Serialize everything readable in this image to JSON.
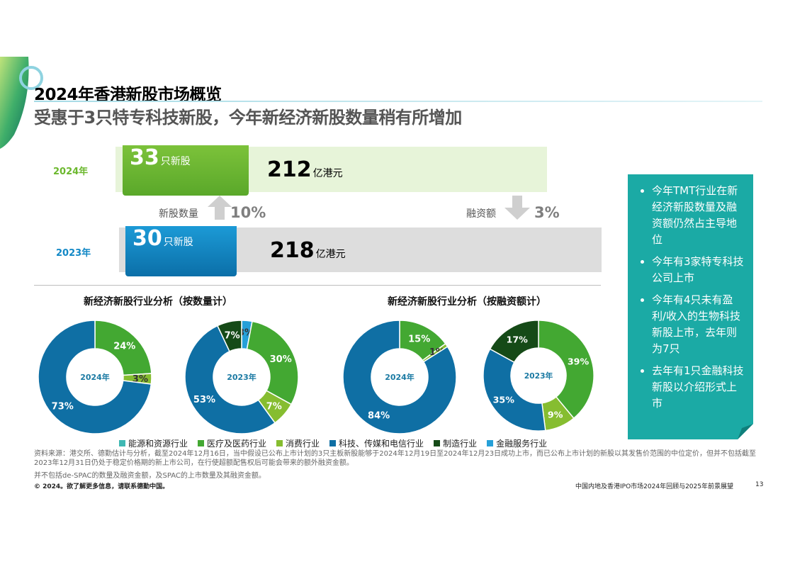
{
  "header": {
    "title": "2024年香港新股市场概览",
    "subtitle": "受惠于3只特专科技新股，今年新经济新股数量稍有所增加"
  },
  "summary": {
    "y2024": {
      "year": "2024年",
      "count": "33",
      "count_unit": "只新股",
      "amount": "212",
      "amount_unit": "亿港元"
    },
    "y2023": {
      "year": "2023年",
      "count": "30",
      "count_unit": "只新股",
      "amount": "218",
      "amount_unit": "亿港元"
    },
    "count_change": {
      "label": "新股数量",
      "value": "10%",
      "direction": "up"
    },
    "funds_change": {
      "label": "融资额",
      "value": "3%",
      "direction": "down"
    }
  },
  "charts": {
    "by_count_title": "新经济新股行业分析（按数量计）",
    "by_funds_title": "新经济新股行业分析（按融资额计）"
  },
  "chart_data": [
    {
      "type": "pie",
      "title": "新经济新股行业分析（按数量计）",
      "center_label": "2024年",
      "slices": [
        {
          "name": "医疗及医药行业",
          "value": 24,
          "label": "24%",
          "color": "#43a832"
        },
        {
          "name": "消费行业",
          "value": 3,
          "label": "3%",
          "color": "#86bd30"
        },
        {
          "name": "科技、传媒和电信行业",
          "value": 73,
          "label": "73%",
          "color": "#0f6fa4"
        }
      ]
    },
    {
      "type": "pie",
      "title": "新经济新股行业分析（按数量计）",
      "center_label": "2023年",
      "slices": [
        {
          "name": "金融服务行业",
          "value": 3,
          "label": "3%",
          "color": "#26a0d8"
        },
        {
          "name": "医疗及医药行业",
          "value": 30,
          "label": "30%",
          "color": "#43a832"
        },
        {
          "name": "消费行业",
          "value": 7,
          "label": "7%",
          "color": "#86bd30"
        },
        {
          "name": "科技、传媒和电信行业",
          "value": 53,
          "label": "53%",
          "color": "#0f6fa4"
        },
        {
          "name": "制造行业",
          "value": 7,
          "label": "7%",
          "color": "#154a17"
        }
      ]
    },
    {
      "type": "pie",
      "title": "新经济新股行业分析（按融资额计）",
      "center_label": "2024年",
      "slices": [
        {
          "name": "医疗及医药行业",
          "value": 15,
          "label": "15%",
          "color": "#43a832"
        },
        {
          "name": "消费行业",
          "value": 1,
          "label": "1%",
          "color": "#86bd30"
        },
        {
          "name": "科技、传媒和电信行业",
          "value": 84,
          "label": "84%",
          "color": "#0f6fa4"
        }
      ]
    },
    {
      "type": "pie",
      "title": "新经济新股行业分析（按融资额计）",
      "center_label": "2023年",
      "slices": [
        {
          "name": "医疗及医药行业",
          "value": 39,
          "label": "39%",
          "color": "#43a832"
        },
        {
          "name": "消费行业",
          "value": 9,
          "label": "9%",
          "color": "#86bd30"
        },
        {
          "name": "科技、传媒和电信行业",
          "value": 35,
          "label": "35%",
          "color": "#0f6fa4"
        },
        {
          "name": "制造行业",
          "value": 17,
          "label": "17%",
          "color": "#154a17"
        }
      ]
    }
  ],
  "legend": [
    {
      "label": "能源和资源行业",
      "color": "#3fb8b3"
    },
    {
      "label": "医疗及医药行业",
      "color": "#43a832"
    },
    {
      "label": "消费行业",
      "color": "#86bd30"
    },
    {
      "label": "科技、传媒和电信行业",
      "color": "#0f6fa4"
    },
    {
      "label": "制造行业",
      "color": "#154a17"
    },
    {
      "label": "金融服务行业",
      "color": "#26a0d8"
    }
  ],
  "side_panel": {
    "bullets": [
      "今年TMT行业在新经济新股数量及融资额仍然占主导地位",
      "今年有3家特专科技公司上市",
      "今年有4只未有盈利/收入的生物科技新股上市，去年则为7只",
      "去年有1只金融科技新股以介绍形式上市"
    ]
  },
  "footer": {
    "source": "资料来源：港交所、德勤估计与分析，截至2024年12月16日，当中假设已公布上市计划的3只主板新股能够于2024年12月19日至2024年12月23日成功上市，而已公布上市计划的新股以其发售价范围的中位定价，但并不包括截至2023年12月31日仍处于稳定价格期的新上市公司，在行使超额配售权后可能会带来的额外融资金额。",
    "note": "并不包括de-SPAC的数量及融资金额，及SPAC的上市数量及其融资金额。",
    "copyright": "© 2024。欲了解更多信息，请联系德勤中国。",
    "report_title": "中国内地及香港IPO市场2024年回顾与2025年前景展望",
    "page": "13"
  },
  "colors": {
    "green_2024": "#6cb82e",
    "blue_2023": "#1288c6",
    "panel_teal": "#1baaa5"
  }
}
